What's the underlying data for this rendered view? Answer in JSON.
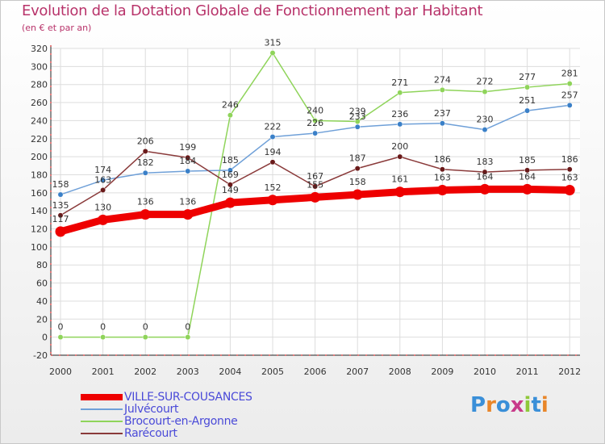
{
  "header": {
    "title": "Evolution de la Dotation Globale de Fonctionnement par Habitant",
    "subtitle": "(en € et par an)"
  },
  "logo": {
    "text": "Proxiti",
    "letter_colors": [
      "#3a8fd8",
      "#e8862a",
      "#3a8fd8",
      "#c83a8a",
      "#8fc83a",
      "#3a8fd8",
      "#e8862a"
    ]
  },
  "colors": {
    "title": "#b8336a",
    "legend_text": "#4a4ad8",
    "grid": "#dddddd",
    "axis_red": "#cc0000"
  },
  "chart_data": {
    "type": "line",
    "title": "Evolution de la Dotation Globale de Fonctionnement par Habitant",
    "subtitle": "(en € et par an)",
    "xlabel": "",
    "ylabel": "",
    "x": [
      "2000",
      "2001",
      "2002",
      "2003",
      "2004",
      "2005",
      "2006",
      "2007",
      "2008",
      "2009",
      "2010",
      "2011",
      "2012"
    ],
    "ylim": [
      -20,
      320
    ],
    "yticks": [
      -20,
      0,
      20,
      40,
      60,
      80,
      100,
      120,
      140,
      160,
      180,
      200,
      220,
      240,
      260,
      280,
      300,
      320
    ],
    "grid": true,
    "legend_position": "bottom-left",
    "series": [
      {
        "name": "Brocourt-en-Argonne",
        "color": "#8fd45a",
        "marker_color": "#8fd45a",
        "weight": "thin",
        "values": [
          0,
          0,
          0,
          0,
          246,
          315,
          240,
          239,
          271,
          274,
          272,
          277,
          281
        ]
      },
      {
        "name": "Julvécourt",
        "color": "#6fa0d8",
        "marker_color": "#3a80c8",
        "weight": "thin",
        "values": [
          158,
          174,
          182,
          184,
          185,
          222,
          226,
          233,
          236,
          237,
          230,
          251,
          257
        ]
      },
      {
        "name": "Rarécourt",
        "color": "#8a3a3a",
        "marker_color": "#6a1a1a",
        "weight": "thin",
        "values": [
          135,
          163,
          206,
          199,
          169,
          194,
          167,
          187,
          200,
          186,
          183,
          185,
          186
        ]
      },
      {
        "name": "VILLE-SUR-COUSANCES",
        "color": "#ee0000",
        "marker_color": "#ee0000",
        "weight": "thick",
        "values": [
          117,
          130,
          136,
          136,
          149,
          152,
          155,
          158,
          161,
          163,
          164,
          164,
          163
        ]
      }
    ]
  },
  "legend": {
    "items": [
      {
        "label": "VILLE-SUR-COUSANCES",
        "color": "#ee0000",
        "weight": "thick"
      },
      {
        "label": "Julvécourt",
        "color": "#6fa0d8",
        "weight": "thin"
      },
      {
        "label": "Brocourt-en-Argonne",
        "color": "#8fd45a",
        "weight": "thin"
      },
      {
        "label": "Rarécourt",
        "color": "#8a3a3a",
        "weight": "thin"
      }
    ]
  }
}
